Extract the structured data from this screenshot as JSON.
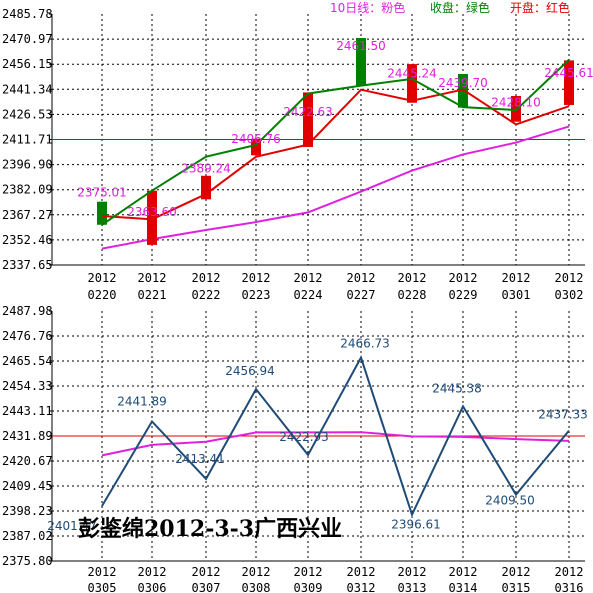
{
  "chart_data": [
    {
      "type": "line",
      "title": "",
      "ylim": [
        2337.65,
        2485.78
      ],
      "yticks": [
        "2485.78",
        "2470.97",
        "2456.15",
        "2441.34",
        "2426.53",
        "2411.71",
        "2396.90",
        "2382.09",
        "2367.27",
        "2352.46",
        "2337.65"
      ],
      "dates": [
        "2012\n0220",
        "2012\n0221",
        "2012\n0222",
        "2012\n0223",
        "2012\n0224",
        "2012\n0227",
        "2012\n0228",
        "2012\n0229",
        "2012\n0301",
        "2012\n0302"
      ],
      "date_top": [
        "2012",
        "2012",
        "2012",
        "2012",
        "2012",
        "2012",
        "2012",
        "2012",
        "2012",
        "2012"
      ],
      "date_bottom": [
        "0220",
        "0221",
        "0222",
        "0223",
        "0224",
        "0227",
        "0228",
        "0229",
        "0301",
        "0302"
      ],
      "legend": {
        "ma_label": "10日线：粉色",
        "close_label": "收盘：绿色",
        "open_label": "开盘：红色",
        "ma_color": "#e020e0",
        "close_color": "#008000",
        "open_color": "#e00000"
      },
      "open": [
        2366.6,
        2364.6,
        2379.5,
        2401.5,
        2408.7,
        2441.1,
        2434.6,
        2441.2,
        2420.6,
        2431.4
      ],
      "close": [
        2361.4,
        2381.5,
        2401.6,
        2408.5,
        2438.8,
        2443.5,
        2447.5,
        2430.8,
        2429.1,
        2458.8
      ],
      "high": [
        2375.01,
        2363.6,
        2389.24,
        2406.76,
        2422.63,
        2461.5,
        2445.24,
        2439.7,
        2428.1,
        2445.61
      ],
      "bars": [
        {
          "top": 2375.01,
          "bottom": 2361.4,
          "color": "green"
        },
        {
          "top": 2381.5,
          "bottom": 2349.5,
          "color": "red"
        },
        {
          "top": 2390.3,
          "bottom": 2376.4,
          "color": "red"
        },
        {
          "top": 2412.2,
          "bottom": 2402.4,
          "color": "red"
        },
        {
          "top": 2439.5,
          "bottom": 2407.3,
          "color": "red"
        },
        {
          "top": 2471.6,
          "bottom": 2443.3,
          "color": "green"
        },
        {
          "top": 2456.2,
          "bottom": 2433.4,
          "color": "red"
        },
        {
          "top": 2450.4,
          "bottom": 2430.5,
          "color": "green"
        },
        {
          "top": 2437.4,
          "bottom": 2422.2,
          "color": "red"
        },
        {
          "top": 2458.4,
          "bottom": 2432.1,
          "color": "red"
        }
      ],
      "data_labels": [
        "2375.01",
        "2363.60",
        "2389.24",
        "2406.76",
        "2422.63",
        "2461.50",
        "2445.24",
        "2439.70",
        "2428.10",
        "2445.61"
      ],
      "ma10": [
        2347.3,
        2352.9,
        2358.3,
        2363.0,
        2368.7,
        2381.0,
        2393.4,
        2402.9,
        2409.9,
        2419.4
      ],
      "ref_line": 2411.71
    },
    {
      "type": "line",
      "title": "",
      "ylim": [
        2375.8,
        2487.98
      ],
      "yticks": [
        "2487.98",
        "2476.76",
        "2465.54",
        "2454.33",
        "2443.11",
        "2431.89",
        "2420.67",
        "2409.45",
        "2398.23",
        "2387.02",
        "2375.80"
      ],
      "date_top": [
        "2012",
        "2012",
        "2012",
        "2012",
        "2012",
        "2012",
        "2012",
        "2012",
        "2012",
        "2012"
      ],
      "date_bottom": [
        "0305",
        "0306",
        "0307",
        "0308",
        "0309",
        "0312",
        "0313",
        "0314",
        "0315",
        "0316"
      ],
      "close": [
        2400.5,
        2438.4,
        2412.6,
        2452.9,
        2423.4,
        2467.1,
        2396.6,
        2445.2,
        2405.6,
        2434.3
      ],
      "ma10": [
        2423.2,
        2427.9,
        2429.3,
        2433.5,
        2433.5,
        2433.6,
        2431.7,
        2431.5,
        2430.5,
        2429.7
      ],
      "data_labels": [
        "2401.47",
        "2441.89",
        "2413.41",
        "2456.94",
        "2422.93",
        "2466.73",
        "2396.61",
        "2445.38",
        "2409.50",
        "2437.33"
      ],
      "ref_line": 2431.89,
      "line_color": "#1e4b78",
      "ma_color": "#e020e0"
    }
  ],
  "watermark": "彭鉴绵2012-3-3广西兴业"
}
